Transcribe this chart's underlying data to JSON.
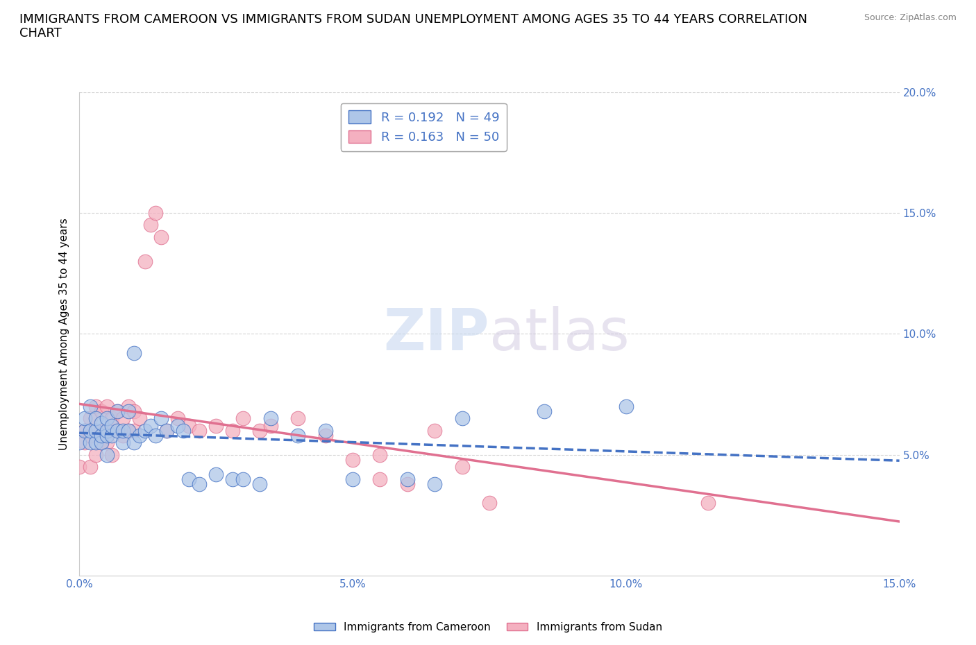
{
  "title": "IMMIGRANTS FROM CAMEROON VS IMMIGRANTS FROM SUDAN UNEMPLOYMENT AMONG AGES 35 TO 44 YEARS CORRELATION\nCHART",
  "source": "Source: ZipAtlas.com",
  "ylabel": "Unemployment Among Ages 35 to 44 years",
  "xlabel": "",
  "cameroon_color": "#aec6e8",
  "sudan_color": "#f4b0c0",
  "cameroon_line_color": "#4472c4",
  "sudan_line_color": "#e07090",
  "legend_cameroon": "Immigrants from Cameroon",
  "legend_sudan": "Immigrants from Sudan",
  "R_cameroon": 0.192,
  "N_cameroon": 49,
  "R_sudan": 0.163,
  "N_sudan": 50,
  "xlim": [
    0.0,
    0.15
  ],
  "ylim": [
    0.0,
    0.2
  ],
  "xticks": [
    0.0,
    0.05,
    0.1,
    0.15
  ],
  "yticks": [
    0.05,
    0.1,
    0.15,
    0.2
  ],
  "cameroon_x": [
    0.0,
    0.001,
    0.001,
    0.002,
    0.002,
    0.002,
    0.003,
    0.003,
    0.003,
    0.004,
    0.004,
    0.004,
    0.005,
    0.005,
    0.005,
    0.005,
    0.006,
    0.006,
    0.007,
    0.007,
    0.008,
    0.008,
    0.009,
    0.009,
    0.01,
    0.01,
    0.011,
    0.012,
    0.013,
    0.014,
    0.015,
    0.016,
    0.018,
    0.019,
    0.02,
    0.022,
    0.025,
    0.028,
    0.03,
    0.033,
    0.035,
    0.04,
    0.045,
    0.05,
    0.06,
    0.065,
    0.07,
    0.085,
    0.1
  ],
  "cameroon_y": [
    0.055,
    0.06,
    0.065,
    0.055,
    0.06,
    0.07,
    0.055,
    0.06,
    0.065,
    0.055,
    0.058,
    0.063,
    0.05,
    0.058,
    0.06,
    0.065,
    0.058,
    0.062,
    0.06,
    0.068,
    0.055,
    0.06,
    0.06,
    0.068,
    0.055,
    0.092,
    0.058,
    0.06,
    0.062,
    0.058,
    0.065,
    0.06,
    0.062,
    0.06,
    0.04,
    0.038,
    0.042,
    0.04,
    0.04,
    0.038,
    0.065,
    0.058,
    0.06,
    0.04,
    0.04,
    0.038,
    0.065,
    0.068,
    0.07
  ],
  "sudan_x": [
    0.0,
    0.001,
    0.001,
    0.002,
    0.002,
    0.002,
    0.003,
    0.003,
    0.003,
    0.004,
    0.004,
    0.004,
    0.005,
    0.005,
    0.005,
    0.006,
    0.006,
    0.006,
    0.007,
    0.007,
    0.008,
    0.008,
    0.009,
    0.009,
    0.01,
    0.01,
    0.011,
    0.012,
    0.013,
    0.014,
    0.015,
    0.016,
    0.018,
    0.02,
    0.022,
    0.025,
    0.028,
    0.03,
    0.033,
    0.035,
    0.04,
    0.045,
    0.05,
    0.055,
    0.055,
    0.06,
    0.065,
    0.07,
    0.075,
    0.115
  ],
  "sudan_y": [
    0.045,
    0.055,
    0.06,
    0.045,
    0.058,
    0.065,
    0.05,
    0.06,
    0.07,
    0.055,
    0.06,
    0.068,
    0.055,
    0.06,
    0.07,
    0.05,
    0.06,
    0.065,
    0.06,
    0.068,
    0.058,
    0.065,
    0.06,
    0.07,
    0.06,
    0.068,
    0.065,
    0.13,
    0.145,
    0.15,
    0.14,
    0.06,
    0.065,
    0.062,
    0.06,
    0.062,
    0.06,
    0.065,
    0.06,
    0.062,
    0.065,
    0.058,
    0.048,
    0.05,
    0.04,
    0.038,
    0.06,
    0.045,
    0.03,
    0.03
  ],
  "background_color": "#ffffff",
  "grid_color": "#cccccc",
  "watermark_part1": "ZIP",
  "watermark_part2": "atlas",
  "title_fontsize": 13,
  "axis_label_fontsize": 11,
  "tick_fontsize": 11
}
